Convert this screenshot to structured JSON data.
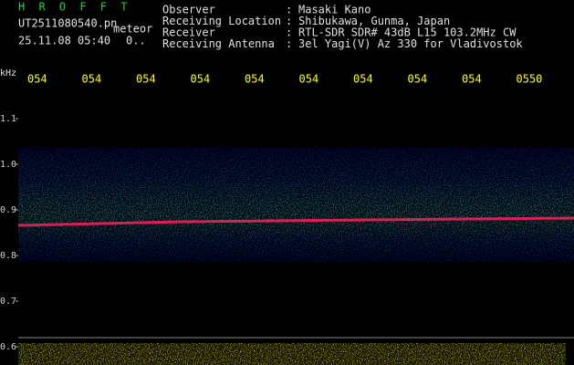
{
  "chart_data": {
    "type": "spectrogram",
    "title": "H R O F F T",
    "file": "UT2511080540.pn",
    "file_suffix": "meteor",
    "timestamp": "25.11.08 05:40",
    "extra": "0..",
    "separator": ":",
    "info": [
      {
        "label": "Observer",
        "value": "Masaki Kano"
      },
      {
        "label": "Receiving Location",
        "value": "Shibukawa, Gunma, Japan"
      },
      {
        "label": "Receiver",
        "value": "RTL-SDR SDR# 43dB L15 103.2MHz CW"
      },
      {
        "label": "Receiving Antenna",
        "value": "3el Yagi(V) Az 330 for Vladivostok"
      }
    ],
    "ylabel": "kHz",
    "ylim": [
      0.56,
      1.214
    ],
    "yticks": [
      0.6,
      0.7,
      0.8,
      0.9,
      {
        "value": 1,
        "label": "1.0"
      },
      1.1
    ],
    "categories": [
      "054",
      "054",
      "054",
      "054",
      "054",
      "054",
      "054",
      "054",
      "054",
      "0550"
    ],
    "color": "#ffff00"
  }
}
